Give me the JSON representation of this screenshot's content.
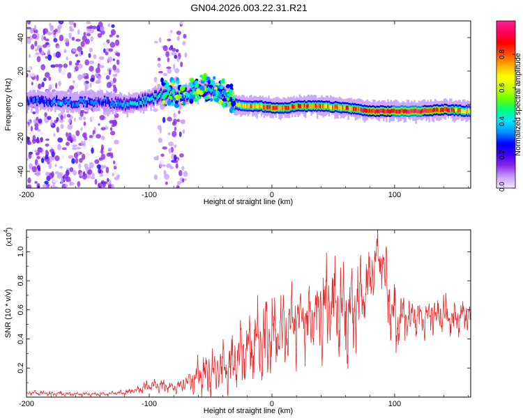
{
  "title": "GN04.2026.003.22.31.R21",
  "chart_data": [
    {
      "type": "heatmap",
      "title": "GN04.2026.003.22.31.R21",
      "xlabel": "Height of straight line (km)",
      "ylabel": "Frequency (Hz)",
      "xlim": [
        -200,
        162
      ],
      "ylim": [
        -50,
        50
      ],
      "xticks": [
        -200,
        -100,
        0,
        100
      ],
      "xtick_labels": [
        "-200",
        "-100",
        "0",
        "100"
      ],
      "yticks": [
        -40,
        -20,
        0,
        20,
        40
      ],
      "ytick_labels": [
        "-40",
        "-20",
        "0",
        "20",
        "40"
      ],
      "colorbar": {
        "label": "Normalized spectral amplitude",
        "range": [
          0,
          1
        ],
        "ticks": [
          0,
          0.2,
          0.4,
          0.6,
          0.8
        ],
        "tick_labels": [
          "0.0",
          "0.2",
          "0.4",
          "0.6",
          "0.8"
        ],
        "colormap": "rainbow",
        "colors": [
          "#f2e6ff",
          "#c8a0ff",
          "#8a2be2",
          "#4000ff",
          "#0000ff",
          "#0090ff",
          "#00e5ff",
          "#00ff80",
          "#66ff00",
          "#ccff00",
          "#ffff00",
          "#ffb000",
          "#ff5000",
          "#ff0000",
          "#ff0060",
          "#ff2090"
        ]
      },
      "ridge": {
        "x": [
          -200,
          -180,
          -160,
          -140,
          -120,
          -100,
          -90,
          -80,
          -70,
          -60,
          -50,
          -40,
          -30,
          -20,
          -10,
          0,
          10,
          20,
          40,
          60,
          80,
          100,
          120,
          140,
          160
        ],
        "f": [
          2,
          2,
          1,
          2,
          0,
          3,
          6,
          5,
          6,
          8,
          9,
          6,
          0,
          -1,
          -1,
          -2,
          -2,
          -1,
          -1,
          -2,
          -4,
          -4,
          -4,
          -3,
          -4
        ],
        "amp": [
          0.3,
          0.35,
          0.35,
          0.3,
          0.4,
          0.45,
          0.5,
          0.45,
          0.4,
          0.45,
          0.45,
          0.45,
          0.6,
          0.7,
          0.75,
          0.85,
          0.8,
          0.8,
          0.75,
          0.75,
          0.85,
          0.9,
          0.9,
          0.85,
          0.7
        ]
      }
    },
    {
      "type": "line",
      "xlabel": "Height of straight line (km)",
      "ylabel": "SNR (10 * v/v)",
      "scale_label": "(x10",
      "scale_exp": "4",
      "color": "#e8282b",
      "xlim": [
        -200,
        162
      ],
      "ylim": [
        0,
        11500
      ],
      "xticks": [
        -200,
        -100,
        0,
        100
      ],
      "xtick_labels": [
        "-200",
        "-100",
        "0",
        "100"
      ],
      "yticks": [
        2000,
        4000,
        6000,
        8000,
        10000
      ],
      "ytick_labels": [
        "0.2",
        "0.4",
        "0.6",
        "0.8",
        "1.0"
      ],
      "x": [
        -200,
        -180,
        -160,
        -140,
        -120,
        -110,
        -100,
        -90,
        -80,
        -70,
        -60,
        -50,
        -40,
        -30,
        -20,
        -10,
        0,
        10,
        20,
        30,
        40,
        50,
        60,
        70,
        80,
        85,
        90,
        95,
        100,
        110,
        120,
        130,
        140,
        150,
        162
      ],
      "mid": [
        300,
        250,
        220,
        200,
        300,
        500,
        800,
        800,
        600,
        1000,
        1500,
        1800,
        2000,
        2400,
        3300,
        3800,
        4200,
        4600,
        5300,
        5000,
        5800,
        6600,
        5500,
        6200,
        8000,
        9800,
        9000,
        7200,
        5000,
        5400,
        5400,
        5600,
        5800,
        5400,
        5800
      ],
      "amp": [
        200,
        200,
        150,
        150,
        200,
        300,
        500,
        500,
        400,
        700,
        1500,
        2000,
        2200,
        2400,
        3000,
        3200,
        3300,
        3200,
        3300,
        3200,
        3600,
        4000,
        3800,
        3400,
        2500,
        2000,
        2200,
        2800,
        3000,
        1600,
        1600,
        1500,
        1500,
        1400,
        1200
      ]
    }
  ]
}
